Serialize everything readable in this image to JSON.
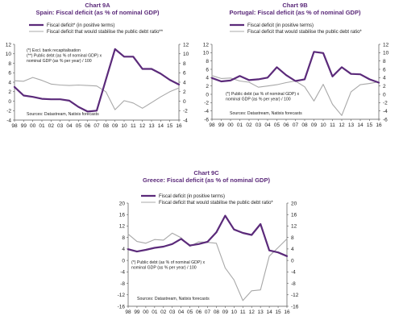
{
  "colors": {
    "purple": "#5b2a7a",
    "gray": "#a8a8a8",
    "axis": "#555555"
  },
  "chart_data": [
    {
      "type": "line",
      "id": "9A",
      "title": "Chart 9A",
      "subtitle": "Spain: Fiscal deficit (as % of nominal GDP)",
      "x": [
        "98",
        "99",
        "00",
        "01",
        "02",
        "03",
        "04",
        "05",
        "06",
        "07",
        "08",
        "09",
        "10",
        "11",
        "12",
        "13",
        "14",
        "15",
        "16"
      ],
      "ylim": [
        -4,
        12
      ],
      "yticks": [
        -4,
        -2,
        0,
        2,
        4,
        6,
        8,
        10,
        12
      ],
      "legend": [
        "Fiscal deficit* (in positive terms)",
        "Fiscal deficit that would stabilise the public debt ratio**"
      ],
      "notes": [
        "(*) Excl. bank recapitalisation",
        "(**) Public debt (as % of nominal GDP) x",
        "nominal GDP (as % per year) / 100"
      ],
      "source": "Sources: Datastream, Natixis forecasts",
      "series": [
        {
          "name": "Fiscal deficit* (in positive terms)",
          "color": "#5b2a7a",
          "values": [
            3.0,
            1.2,
            0.9,
            0.5,
            0.4,
            0.4,
            0.1,
            -1.2,
            -2.2,
            -2.0,
            4.5,
            11.0,
            9.4,
            9.4,
            6.8,
            6.8,
            5.8,
            4.5,
            3.5
          ]
        },
        {
          "name": "Fiscal deficit that would stabilise the public debt ratio**",
          "color": "#a8a8a8",
          "values": [
            4.3,
            4.2,
            5.0,
            4.4,
            3.6,
            3.4,
            3.3,
            3.4,
            3.3,
            3.2,
            2.0,
            -1.8,
            0.1,
            -0.4,
            -1.5,
            -0.3,
            0.9,
            2.0,
            2.8
          ]
        }
      ]
    },
    {
      "type": "line",
      "id": "9B",
      "title": "Chart 9B",
      "subtitle": "Portugal: Fiscal deficit (as % of nominal GDP)",
      "x": [
        "98",
        "99",
        "00",
        "01",
        "02",
        "03",
        "04",
        "05",
        "06",
        "07",
        "08",
        "09",
        "10",
        "11",
        "12",
        "13",
        "14",
        "15",
        "16"
      ],
      "ylim": [
        -6,
        12
      ],
      "yticks": [
        -6,
        -4,
        -2,
        0,
        2,
        4,
        6,
        8,
        10,
        12
      ],
      "legend": [
        "Fiscal deficit (in positive terms)",
        "Fiscal deficit that would stabilise the public debt ratio*"
      ],
      "notes": [
        "(*) Public debt (as % of nominal GDP) x",
        "nominal GDP (as % per year) / 100"
      ],
      "source": "Sources: Datastream, Natixis forecasts",
      "series": [
        {
          "name": "Fiscal deficit (in positive terms)",
          "color": "#5b2a7a",
          "values": [
            3.9,
            3.1,
            3.3,
            4.4,
            3.4,
            3.6,
            4.0,
            6.5,
            4.6,
            3.2,
            3.6,
            10.2,
            9.9,
            4.3,
            6.5,
            4.9,
            4.8,
            3.6,
            2.8
          ]
        },
        {
          "name": "Fiscal deficit that would stabilise the public debt ratio*",
          "color": "#a8a8a8",
          "values": [
            4.5,
            3.8,
            3.9,
            3.2,
            2.9,
            1.7,
            2.0,
            2.3,
            2.8,
            3.2,
            1.8,
            -1.6,
            2.4,
            -2.4,
            -5.1,
            0.6,
            2.3,
            2.6,
            3.0
          ]
        }
      ]
    },
    {
      "type": "line",
      "id": "9C",
      "title": "Chart 9C",
      "subtitle": "Greece: Fiscal deficit (as % of nominal GDP)",
      "x": [
        "98",
        "99",
        "00",
        "01",
        "02",
        "03",
        "04",
        "05",
        "06",
        "07",
        "08",
        "09",
        "10",
        "11",
        "12",
        "13",
        "14",
        "15",
        "16"
      ],
      "ylim": [
        -16,
        20
      ],
      "yticks": [
        -16,
        -12,
        -8,
        -4,
        0,
        4,
        8,
        12,
        16,
        20
      ],
      "legend": [
        "Fiscal deficit (in positive terms)",
        "Fiscal deficit that would stabilise the public debt ratio*"
      ],
      "notes": [
        "(*) Public debt (as % of nominal GDP) x",
        "nominal GDP (as % per year) / 100"
      ],
      "source": "Sources: Datastream, Natixis forecasts",
      "series": [
        {
          "name": "Fiscal deficit (in positive terms)",
          "color": "#5b2a7a",
          "values": [
            3.9,
            3.1,
            3.7,
            4.4,
            4.8,
            5.7,
            7.5,
            5.2,
            5.7,
            6.5,
            9.8,
            15.6,
            10.8,
            9.6,
            8.9,
            12.7,
            3.5,
            2.8,
            1.5
          ]
        },
        {
          "name": "Fiscal deficit that would stabilise the public debt ratio*",
          "color": "#a8a8a8",
          "values": [
            9.2,
            6.6,
            6.0,
            7.3,
            7.1,
            9.5,
            7.9,
            4.9,
            6.5,
            6.3,
            6.0,
            -2.6,
            -6.8,
            -14.0,
            -10.6,
            -10.3,
            1.5,
            4.5,
            7.5
          ]
        }
      ]
    }
  ]
}
